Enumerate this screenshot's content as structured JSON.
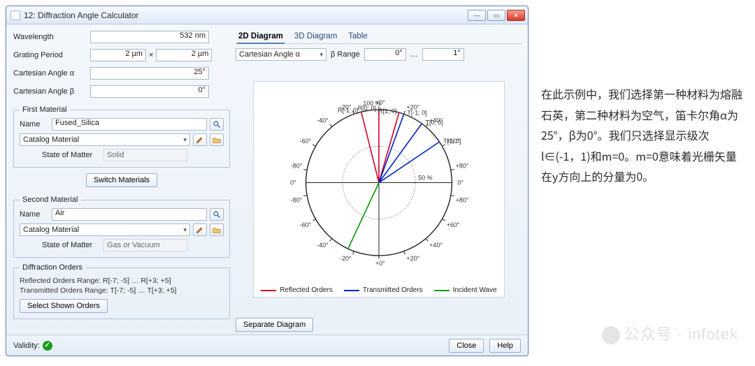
{
  "window": {
    "title": "12: Diffraction Angle Calculator",
    "min_label": "—",
    "max_label": "▭",
    "close_label": "×"
  },
  "params": {
    "wavelength_label": "Wavelength",
    "wavelength_value": "532 nm",
    "grating_label": "Grating Period",
    "grating_x": "2 µm",
    "grating_y": "2 µm",
    "alpha_label": "Cartesian Angle α",
    "alpha_value": "25°",
    "beta_label": "Cartesian Angle β",
    "beta_value": "0°"
  },
  "mat1": {
    "legend": "First Material",
    "name_label": "Name",
    "name_value": "Fused_Silica",
    "catalog_label": "Catalog Material",
    "state_label": "State of Matter",
    "state_value": "Solid"
  },
  "switch_btn": "Switch Materials",
  "mat2": {
    "legend": "Second Material",
    "name_label": "Name",
    "name_value": "Air",
    "catalog_label": "Catalog Material",
    "state_label": "State of Matter",
    "state_value": "Gas or Vacuum"
  },
  "orders": {
    "legend": "Diffraction Orders",
    "line1": "Reflected Orders Range: R[-7; -5] … R[+3; +5]",
    "line2": "Transmitted Orders Range: T[-7; -5] … T[+3; +5]",
    "select_btn": "Select Shown Orders"
  },
  "tabs": {
    "t2d": "2D Diagram",
    "t3d": "3D Diagram",
    "ttab": "Table"
  },
  "range": {
    "mode_label": "Cartesian Angle α",
    "beta_label": "β Range",
    "beta_from": "0°",
    "beta_to": "1°",
    "ellipsis": "…"
  },
  "chart": {
    "radius_pct": [
      50,
      100
    ],
    "angle_ticks_deg": [
      -80,
      -60,
      -40,
      -20,
      0,
      20,
      40,
      60,
      80
    ],
    "labels": {
      "R_-1_0": "R[-1; 0]",
      "R_0_0": "R[0; 0]",
      "R_1_0": "R[1; 0]",
      "T_-1_0": "T[-1; 0]",
      "T_0_0": "T[0; 0]",
      "T_1_0": "T[1; 0]"
    },
    "reflected_deg": [
      -14,
      0,
      16
    ],
    "transmitted_deg": [
      20,
      36,
      56
    ],
    "incident_deg": 205,
    "colors": {
      "reflected": "#d4002a",
      "transmitted": "#0020c8",
      "incident": "#009a00",
      "grid": "#222222",
      "bg": "#ffffff"
    },
    "legend": {
      "reflected": "Reflected Orders",
      "transmitted": "Transmitted Orders",
      "incident": "Incident Wave"
    }
  },
  "separate_btn": "Separate Diagram",
  "footer": {
    "validity": "Validity:",
    "close": "Close",
    "help": "Help"
  },
  "caption": "在此示例中，我们选择第一种材料为熔融石英，第二种材料为空气，笛卡尔角α为25°，β为0°。我们只选择显示级次l∈(-1，1)和m=0。m=0意味着光栅矢量在y方向上的分量为0。",
  "watermark": "公众号 · infotek"
}
